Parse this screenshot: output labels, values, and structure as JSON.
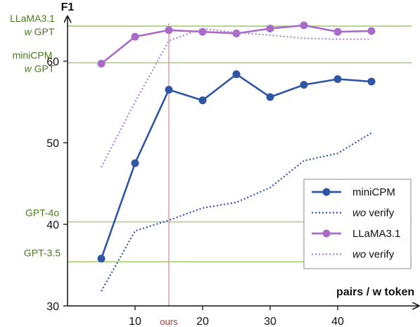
{
  "chart_data": {
    "type": "line",
    "xlabel": "pairs / w token",
    "ylabel": "F1",
    "xlim": [
      0,
      52
    ],
    "ylim": [
      30,
      65.5
    ],
    "xticks": [
      10,
      20,
      30,
      40
    ],
    "yticks": [
      30,
      40,
      50,
      60
    ],
    "grid": false,
    "legend_position": "bottom-right",
    "x": [
      5,
      10,
      15,
      20,
      25,
      30,
      35,
      40,
      45
    ],
    "series": [
      {
        "name": "miniCPM",
        "style": "solid",
        "markers": true,
        "color": "#2f55a4",
        "values": [
          35.8,
          47.5,
          56.5,
          55.2,
          58.4,
          55.6,
          57.1,
          57.8,
          57.5
        ]
      },
      {
        "name": "wo verify",
        "style": "dotted",
        "markers": false,
        "color": "#2f55a4",
        "values": [
          31.8,
          39.2,
          40.5,
          42.0,
          42.7,
          44.5,
          47.8,
          48.7,
          51.2
        ]
      },
      {
        "name": "LLaMA3.1",
        "style": "solid",
        "markers": true,
        "color": "#a86cc8",
        "values": [
          59.7,
          63.0,
          63.8,
          63.6,
          63.4,
          64.0,
          64.4,
          63.6,
          63.7
        ]
      },
      {
        "name": "wo verify",
        "style": "dotted",
        "markers": false,
        "color": "#b07fd0",
        "values": [
          47.0,
          55.0,
          62.5,
          64.0,
          63.5,
          63.2,
          62.8,
          62.7,
          62.7
        ]
      }
    ],
    "reference_lines": [
      {
        "label_line1": "LLaMA3.1",
        "label_line2": "w GPT",
        "value": 64.3
      },
      {
        "label_line1": "miniCPM",
        "label_line2": "w GPT",
        "value": 59.8
      },
      {
        "label_line1": "GPT-4o",
        "label_line2": "",
        "value": 40.3
      },
      {
        "label_line1": "GPT-3.5",
        "label_line2": "",
        "value": 35.4
      }
    ],
    "marker_line": {
      "x": 15,
      "label": "ours"
    },
    "colors": {
      "reference": "#9ccc65",
      "reference_text": "#4a7a1f",
      "marker_line": "#e59aa4",
      "marker_text": "#b03a3a"
    }
  }
}
